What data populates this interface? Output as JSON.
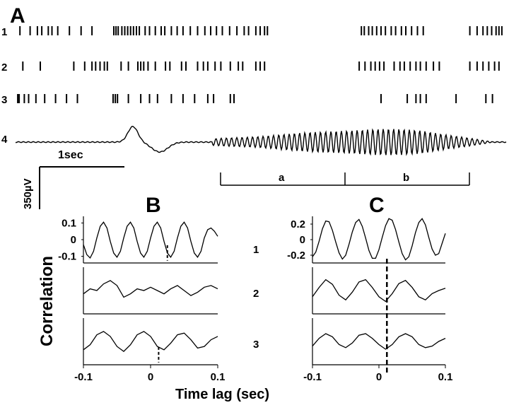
{
  "panels": {
    "a": "A",
    "b": "B",
    "c": "C"
  },
  "trace_labels": [
    "1",
    "2",
    "3",
    "4"
  ],
  "corr_row_labels": [
    "1",
    "2",
    "3"
  ],
  "scale_bar": {
    "time_label": "1sec",
    "voltage_label": "350µV"
  },
  "segments": {
    "a": "a",
    "b": "b"
  },
  "axes": {
    "ylabel": "Correlation",
    "xlabel": "Time lag (sec)"
  },
  "chart_data": [
    {
      "type": "scatter",
      "title": "A",
      "description_series": "spike rasters of units 1-3 (tick times in seconds)",
      "xlim": [
        0,
        6.7
      ],
      "series": [
        {
          "name": "1",
          "spikes": [
            0.06,
            0.2,
            0.3,
            0.36,
            0.45,
            0.5,
            0.58,
            0.74,
            0.9,
            1.05,
            1.35,
            1.38,
            1.41,
            1.46,
            1.5,
            1.54,
            1.58,
            1.62,
            1.66,
            1.7,
            1.78,
            1.84,
            1.92,
            2.0,
            2.05,
            2.14,
            2.22,
            2.3,
            2.4,
            2.5,
            2.6,
            2.68,
            2.76,
            2.84,
            2.94,
            3.04,
            3.14,
            3.2,
            3.3,
            3.36,
            3.42,
            3.46,
            4.75,
            4.79,
            4.85,
            4.9,
            4.96,
            5.02,
            5.08,
            5.16,
            5.22,
            5.3,
            5.36,
            5.44,
            5.52,
            5.6,
            6.24,
            6.34,
            6.42,
            6.48,
            6.54,
            6.6,
            6.64,
            6.68
          ]
        },
        {
          "name": "2",
          "spikes": [
            0.1,
            0.34,
            0.8,
            0.95,
            1.05,
            1.1,
            1.16,
            1.22,
            1.26,
            1.45,
            1.55,
            1.68,
            1.72,
            1.76,
            1.82,
            1.92,
            2.06,
            2.12,
            2.28,
            2.34,
            2.5,
            2.58,
            2.64,
            2.74,
            2.82,
            2.95,
            3.06,
            3.12,
            3.3,
            3.36,
            3.42,
            4.72,
            4.8,
            4.88,
            4.94,
            5.0,
            5.06,
            5.2,
            5.28,
            5.34,
            5.42,
            5.5,
            5.56,
            5.64,
            5.74,
            5.82,
            6.24,
            6.34,
            6.42,
            6.5,
            6.58,
            6.64
          ]
        },
        {
          "name": "3",
          "spikes": [
            0.03,
            0.05,
            0.12,
            0.18,
            0.28,
            0.4,
            0.55,
            0.7,
            0.85,
            1.34,
            1.37,
            1.4,
            1.55,
            1.72,
            1.84,
            1.95,
            2.14,
            2.3,
            2.46,
            2.64,
            2.72,
            2.95,
            3.0,
            5.02,
            5.38,
            5.5,
            5.56,
            5.64,
            6.05,
            6.46,
            6.55
          ]
        }
      ]
    },
    {
      "type": "line",
      "title": "B",
      "xlabel": "Time lag (sec)",
      "ylabel": "Correlation",
      "xlim": [
        -0.1,
        0.1
      ],
      "xticks": [
        "-0.1",
        "0",
        "0.1"
      ],
      "series": [
        {
          "name": "1",
          "ylim": [
            -0.14,
            0.14
          ],
          "yticks": [
            "0.1",
            "0",
            "-0.1"
          ],
          "peak_lag": 0.025,
          "x": [
            -0.1,
            -0.095,
            -0.09,
            -0.085,
            -0.08,
            -0.075,
            -0.07,
            -0.065,
            -0.06,
            -0.055,
            -0.05,
            -0.045,
            -0.04,
            -0.035,
            -0.03,
            -0.025,
            -0.02,
            -0.015,
            -0.01,
            -0.005,
            0,
            0.005,
            0.01,
            0.015,
            0.02,
            0.025,
            0.03,
            0.035,
            0.04,
            0.045,
            0.05,
            0.055,
            0.06,
            0.065,
            0.07,
            0.075,
            0.08,
            0.085,
            0.09,
            0.095,
            0.1
          ],
          "y": [
            -0.03,
            -0.09,
            -0.11,
            -0.07,
            0.01,
            0.08,
            0.105,
            0.07,
            -0.01,
            -0.08,
            -0.105,
            -0.07,
            0.01,
            0.08,
            0.105,
            0.07,
            -0.01,
            -0.08,
            -0.105,
            -0.07,
            0.01,
            0.08,
            0.105,
            0.07,
            -0.01,
            -0.08,
            -0.105,
            -0.07,
            0.01,
            0.08,
            0.105,
            0.07,
            -0.01,
            -0.08,
            -0.105,
            -0.07,
            0.01,
            0.06,
            0.07,
            0.05,
            0.02
          ]
        },
        {
          "name": "2",
          "ylim": [
            -0.14,
            0.14
          ],
          "yticks": [],
          "x": [
            -0.1,
            -0.09,
            -0.08,
            -0.07,
            -0.06,
            -0.05,
            -0.04,
            -0.03,
            -0.02,
            -0.01,
            0,
            0.01,
            0.02,
            0.03,
            0.04,
            0.05,
            0.06,
            0.07,
            0.08,
            0.09,
            0.1
          ],
          "y": [
            -0.02,
            0.01,
            0.0,
            0.04,
            0.06,
            0.03,
            -0.04,
            -0.02,
            0.01,
            0.0,
            0.02,
            0.0,
            -0.02,
            0.01,
            0.03,
            0.0,
            -0.03,
            -0.01,
            0.02,
            0.03,
            0.01
          ]
        },
        {
          "name": "3",
          "ylim": [
            -0.14,
            0.14
          ],
          "yticks": [],
          "peak_lag": 0.012,
          "x": [
            -0.1,
            -0.09,
            -0.08,
            -0.07,
            -0.06,
            -0.05,
            -0.04,
            -0.03,
            -0.02,
            -0.01,
            0,
            0.01,
            0.02,
            0.03,
            0.04,
            0.05,
            0.06,
            0.07,
            0.08,
            0.09,
            0.1
          ],
          "y": [
            -0.05,
            -0.02,
            0.04,
            0.06,
            0.03,
            -0.03,
            -0.06,
            -0.02,
            0.04,
            0.06,
            0.03,
            -0.03,
            -0.05,
            -0.01,
            0.04,
            0.05,
            0.01,
            -0.04,
            -0.03,
            0.01,
            0.03
          ]
        }
      ]
    },
    {
      "type": "line",
      "title": "C",
      "xlabel": "Time lag (sec)",
      "ylabel": "Correlation",
      "xlim": [
        -0.1,
        0.1
      ],
      "xticks": [
        "-0.1",
        "0",
        "0.1"
      ],
      "series": [
        {
          "name": "1",
          "ylim": [
            -0.3,
            0.3
          ],
          "yticks": [
            "0.2",
            "0",
            "-0.2"
          ],
          "peak_lag": 0.012,
          "x": [
            -0.1,
            -0.095,
            -0.09,
            -0.085,
            -0.08,
            -0.075,
            -0.07,
            -0.065,
            -0.06,
            -0.055,
            -0.05,
            -0.045,
            -0.04,
            -0.035,
            -0.03,
            -0.025,
            -0.02,
            -0.015,
            -0.01,
            -0.005,
            0,
            0.005,
            0.01,
            0.015,
            0.02,
            0.025,
            0.03,
            0.035,
            0.04,
            0.045,
            0.05,
            0.055,
            0.06,
            0.065,
            0.07,
            0.075,
            0.08,
            0.085,
            0.09,
            0.095,
            0.1
          ],
          "y": [
            -0.22,
            -0.16,
            -0.02,
            0.14,
            0.24,
            0.23,
            0.12,
            -0.03,
            -0.17,
            -0.25,
            -0.2,
            -0.06,
            0.1,
            0.22,
            0.26,
            0.17,
            0.02,
            -0.14,
            -0.24,
            -0.24,
            -0.13,
            0.03,
            0.18,
            0.27,
            0.25,
            0.13,
            -0.03,
            -0.18,
            -0.26,
            -0.22,
            -0.08,
            0.09,
            0.22,
            0.27,
            0.19,
            0.03,
            -0.12,
            -0.2,
            -0.18,
            -0.05,
            0.08
          ]
        },
        {
          "name": "2",
          "ylim": [
            -0.3,
            0.3
          ],
          "yticks": [],
          "peak_lag": 0.012,
          "x": [
            -0.1,
            -0.09,
            -0.08,
            -0.07,
            -0.06,
            -0.05,
            -0.04,
            -0.03,
            -0.02,
            -0.01,
            0,
            0.01,
            0.02,
            0.03,
            0.04,
            0.05,
            0.06,
            0.07,
            0.08,
            0.09,
            0.1
          ],
          "y": [
            -0.08,
            0.04,
            0.14,
            0.08,
            -0.06,
            -0.12,
            -0.02,
            0.11,
            0.14,
            0.04,
            -0.08,
            -0.14,
            -0.04,
            0.09,
            0.13,
            0.04,
            -0.08,
            -0.12,
            -0.04,
            0.0,
            0.03
          ]
        },
        {
          "name": "3",
          "ylim": [
            -0.3,
            0.3
          ],
          "yticks": [],
          "peak_lag": 0.012,
          "x": [
            -0.1,
            -0.09,
            -0.08,
            -0.07,
            -0.06,
            -0.05,
            -0.04,
            -0.03,
            -0.02,
            -0.01,
            0,
            0.01,
            0.02,
            0.03,
            0.04,
            0.05,
            0.06,
            0.07,
            0.08,
            0.09,
            0.1
          ],
          "y": [
            -0.06,
            0.04,
            0.1,
            0.06,
            -0.04,
            -0.08,
            -0.02,
            0.08,
            0.1,
            0.04,
            -0.04,
            -0.1,
            -0.04,
            0.06,
            0.1,
            0.06,
            -0.04,
            -0.08,
            -0.06,
            0.0,
            0.04
          ]
        }
      ]
    }
  ]
}
